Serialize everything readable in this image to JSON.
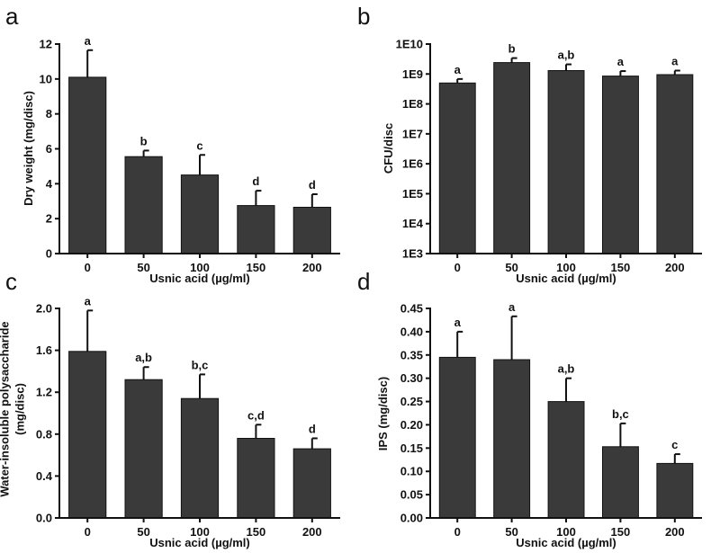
{
  "chart_data": [
    {
      "panel": "a",
      "type": "bar",
      "scale": "linear",
      "categories": [
        "0",
        "50",
        "100",
        "150",
        "200"
      ],
      "values": [
        10.1,
        5.55,
        4.5,
        2.75,
        2.65
      ],
      "errors": [
        1.55,
        0.35,
        1.15,
        0.85,
        0.75
      ],
      "significance": [
        "a",
        "b",
        "c",
        "d",
        "d"
      ],
      "ylim": [
        0,
        12
      ],
      "yticks": [
        0,
        2,
        4,
        6,
        8,
        10,
        12
      ],
      "ytick_labels": [
        "0",
        "2",
        "4",
        "6",
        "8",
        "10",
        "12"
      ],
      "xlabel": "Usnic acid (µg/ml)",
      "ylabel": [
        "Dry weight (mg/disc)"
      ]
    },
    {
      "panel": "b",
      "type": "bar",
      "scale": "log",
      "categories": [
        "0",
        "50",
        "100",
        "150",
        "200"
      ],
      "values": [
        500000000,
        2400000000,
        1300000000,
        850000000,
        950000000
      ],
      "errors": [
        180000000,
        1000000000,
        800000000,
        400000000,
        350000000
      ],
      "significance": [
        "a",
        "b",
        "a,b",
        "a",
        "a"
      ],
      "ylim": [
        1000,
        10000000000
      ],
      "yticks": [
        1000,
        10000,
        100000,
        1000000,
        10000000,
        100000000,
        1000000000,
        10000000000
      ],
      "ytick_labels": [
        "1E3",
        "1E4",
        "1E5",
        "1E6",
        "1E7",
        "1E8",
        "1E9",
        "1E10"
      ],
      "xlabel": "Usnic acid (µg/ml)",
      "ylabel": [
        "CFU/disc"
      ]
    },
    {
      "panel": "c",
      "type": "bar",
      "scale": "linear",
      "categories": [
        "0",
        "50",
        "100",
        "150",
        "200"
      ],
      "values": [
        1.59,
        1.32,
        1.14,
        0.76,
        0.66
      ],
      "errors": [
        0.39,
        0.12,
        0.23,
        0.13,
        0.1
      ],
      "significance": [
        "a",
        "a,b",
        "b,c",
        "c,d",
        "d"
      ],
      "ylim": [
        0,
        2.0
      ],
      "yticks": [
        0,
        0.4,
        0.8,
        1.2,
        1.6,
        2.0
      ],
      "ytick_labels": [
        "0.0",
        "0.4",
        "0.8",
        "1.2",
        "1.6",
        "2.0"
      ],
      "xlabel": "Usnic acid (µg/ml)",
      "ylabel": [
        "Water-insoluble polysaccharide",
        "(mg/disc)"
      ]
    },
    {
      "panel": "d",
      "type": "bar",
      "scale": "linear",
      "categories": [
        "0",
        "50",
        "100",
        "150",
        "200"
      ],
      "values": [
        0.345,
        0.34,
        0.25,
        0.153,
        0.117
      ],
      "errors": [
        0.055,
        0.093,
        0.05,
        0.05,
        0.02
      ],
      "significance": [
        "a",
        "a",
        "a,b",
        "b,c",
        "c"
      ],
      "ylim": [
        0,
        0.45
      ],
      "yticks": [
        0,
        0.05,
        0.1,
        0.15,
        0.2,
        0.25,
        0.3,
        0.35,
        0.4,
        0.45
      ],
      "ytick_labels": [
        "0.00",
        "0.05",
        "0.10",
        "0.15",
        "0.20",
        "0.25",
        "0.30",
        "0.35",
        "0.40",
        "0.45"
      ],
      "xlabel": "Usnic acid (µg/ml)",
      "ylabel": [
        "IPS (mg/disc)"
      ]
    }
  ],
  "colors": {
    "bar_fill": "#3a3a3a",
    "axis": "#111111"
  }
}
